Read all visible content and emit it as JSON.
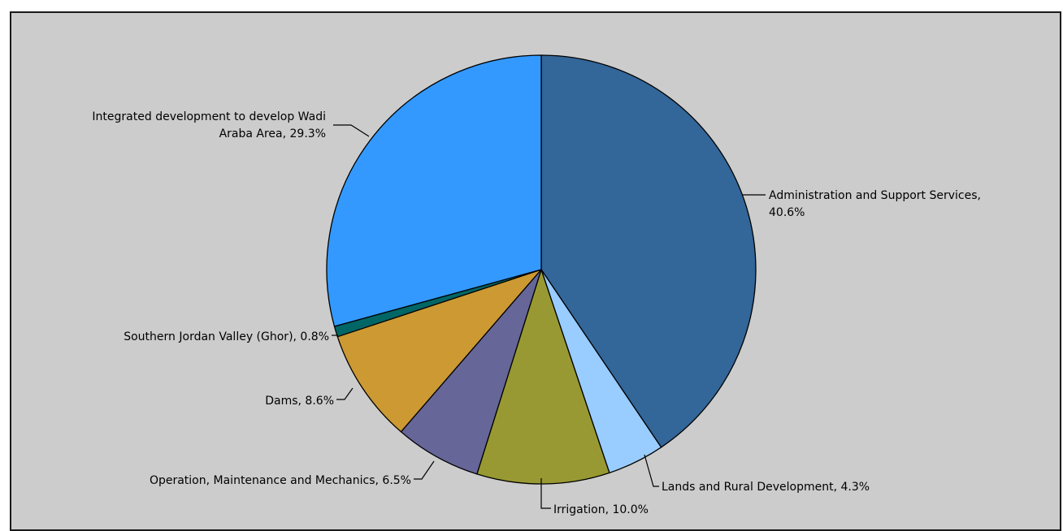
{
  "chart_data": {
    "type": "pie",
    "title": "",
    "start_angle_deg": 0,
    "direction": "clockwise",
    "slices": [
      {
        "label": "Administration and Support Services, 40.6%",
        "name": "Administration and Support Services",
        "value": 40.6,
        "color": "#336699"
      },
      {
        "label": "Lands and Rural Development, 4.3%",
        "name": "Lands and Rural Development",
        "value": 4.3,
        "color": "#99ccff"
      },
      {
        "label": "Irrigation, 10.0%",
        "name": "Irrigation",
        "value": 10.0,
        "color": "#999933"
      },
      {
        "label": "Operation, Maintenance and Mechanics, 6.5%",
        "name": "Operation, Maintenance and Mechanics",
        "value": 6.5,
        "color": "#666699"
      },
      {
        "label": "Dams, 8.6%",
        "name": "Dams",
        "value": 8.6,
        "color": "#cc9933"
      },
      {
        "label": "Southern Jordan Valley (Ghor), 0.8%",
        "name": "Southern Jordan Valley (Ghor)",
        "value": 0.8,
        "color": "#006666"
      },
      {
        "label": "Integrated development to develop Wadi Araba Area, 29.3%",
        "name": "Integrated development to develop Wadi Araba Area",
        "value": 29.3,
        "color": "#3399ff"
      }
    ]
  }
}
